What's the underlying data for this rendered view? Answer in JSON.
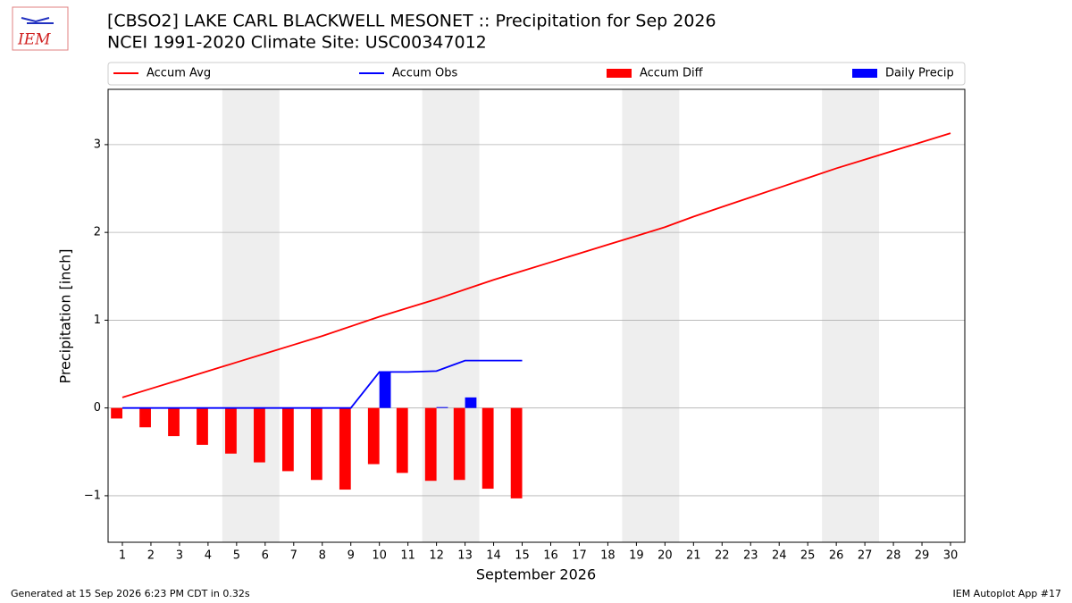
{
  "chart_data": {
    "type": "combo",
    "logo": "IEM",
    "title": "[CBSO2] LAKE CARL BLACKWELL MESONET :: Precipitation for Sep 2026",
    "subtitle": "NCEI 1991-2020 Climate Site: USC00347012",
    "x_label": "September 2026",
    "y_label": "Precipitation [inch]",
    "footer_left": "Generated at 15 Sep 2026 6:23 PM CDT in 0.32s",
    "footer_right": "IEM Autoplot App #17",
    "x": [
      1,
      2,
      3,
      4,
      5,
      6,
      7,
      8,
      9,
      10,
      11,
      12,
      13,
      14,
      15,
      16,
      17,
      18,
      19,
      20,
      21,
      22,
      23,
      24,
      25,
      26,
      27,
      28,
      29,
      30
    ],
    "xlim": [
      0.5,
      30.5
    ],
    "xticks": [
      1,
      2,
      3,
      4,
      5,
      6,
      7,
      8,
      9,
      10,
      11,
      12,
      13,
      14,
      15,
      16,
      17,
      18,
      19,
      20,
      21,
      22,
      23,
      24,
      25,
      26,
      27,
      28,
      29,
      30
    ],
    "ylim": [
      -1.53,
      3.63
    ],
    "yticks": [
      {
        "value": -1,
        "label": "−1"
      },
      0,
      1,
      2,
      3
    ],
    "grid": true,
    "weekend_spans": [
      [
        4.5,
        6.5
      ],
      [
        11.5,
        13.5
      ],
      [
        18.5,
        20.5
      ],
      [
        25.5,
        27.5
      ]
    ],
    "series": [
      {
        "name": "Accum Avg",
        "kind": "line",
        "color": "#ff0000",
        "values": [
          0.12,
          0.22,
          0.32,
          0.42,
          0.52,
          0.62,
          0.72,
          0.82,
          0.93,
          1.04,
          1.14,
          1.24,
          1.35,
          1.46,
          1.56,
          1.66,
          1.76,
          1.86,
          1.96,
          2.06,
          2.18,
          2.29,
          2.4,
          2.51,
          2.62,
          2.73,
          2.83,
          2.93,
          3.03,
          3.13
        ]
      },
      {
        "name": "Accum Obs",
        "kind": "line",
        "color": "#0000ff",
        "values": [
          0,
          0,
          0,
          0,
          0,
          0,
          0,
          0,
          0,
          0.41,
          0.41,
          0.42,
          0.54,
          0.54,
          0.54,
          null,
          null,
          null,
          null,
          null,
          null,
          null,
          null,
          null,
          null,
          null,
          null,
          null,
          null,
          null
        ]
      },
      {
        "name": "Accum Diff",
        "kind": "bar",
        "color": "#ff0000",
        "values": [
          -0.12,
          -0.22,
          -0.32,
          -0.42,
          -0.52,
          -0.62,
          -0.72,
          -0.82,
          -0.93,
          -0.64,
          -0.74,
          -0.83,
          -0.82,
          -0.92,
          -1.03,
          null,
          null,
          null,
          null,
          null,
          null,
          null,
          null,
          null,
          null,
          null,
          null,
          null,
          null,
          null
        ]
      },
      {
        "name": "Daily Precip",
        "kind": "bar",
        "color": "#0000ff",
        "values": [
          0,
          0,
          0,
          0,
          0,
          0,
          0,
          0,
          0,
          0.41,
          0,
          0.01,
          0.12,
          0,
          0,
          null,
          null,
          null,
          null,
          null,
          null,
          null,
          null,
          null,
          null,
          null,
          null,
          null,
          null,
          null
        ]
      }
    ]
  }
}
